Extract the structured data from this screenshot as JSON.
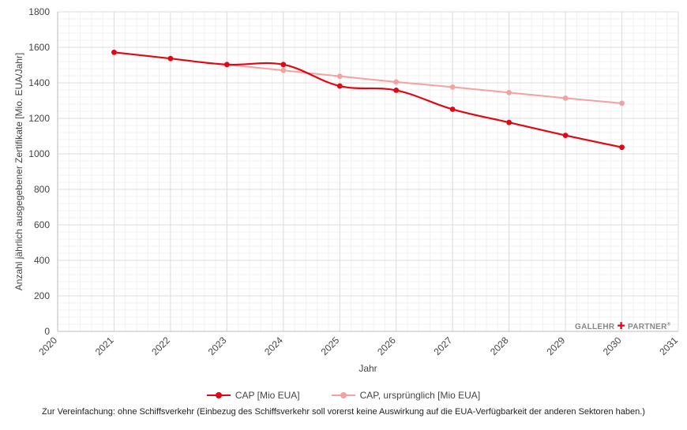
{
  "chart_data": {
    "type": "line",
    "xlabel": "Jahr",
    "ylabel": "Anzahl jährlich ausgegebener Zertifikate [Mio. EUA/Jahr]",
    "xlim": [
      2020,
      2031
    ],
    "ylim": [
      0,
      1800
    ],
    "x_ticks": [
      "2020",
      "2021",
      "2022",
      "2023",
      "2024",
      "2025",
      "2026",
      "2027",
      "2028",
      "2029",
      "2030",
      "2031"
    ],
    "y_ticks": [
      "0",
      "200",
      "400",
      "600",
      "800",
      "1000",
      "1200",
      "1400",
      "1600",
      "1800"
    ],
    "grid": true,
    "legend_position": "bottom",
    "series": [
      {
        "name": "CAP [Mio EUA]",
        "color": "#e30613",
        "x": [
          2021,
          2022,
          2023,
          2024,
          2025,
          2026,
          2027,
          2028,
          2029,
          2030
        ],
        "values": [
          1572,
          1537,
          1503,
          1503,
          1382,
          1358,
          1251,
          1177,
          1104,
          1037
        ]
      },
      {
        "name": "CAP, ursprünglich [Mio EUA]",
        "color": "#f4a1a1",
        "x": [
          2023,
          2024,
          2025,
          2026,
          2027,
          2028,
          2029,
          2030
        ],
        "values": [
          1503,
          1470,
          1437,
          1405,
          1376,
          1345,
          1314,
          1285
        ]
      }
    ]
  },
  "watermark": {
    "left": "GALLEHR",
    "cross": "✚",
    "right": "PARTNER",
    "reg": "®"
  },
  "footnote": "Zur Vereinfachung: ohne Schiffsverkehr (Einbezug des Schiffsverkehr soll vorerst keine Auswirkung auf die EUA-Verfügbarkeit der anderen Sektoren haben.)"
}
